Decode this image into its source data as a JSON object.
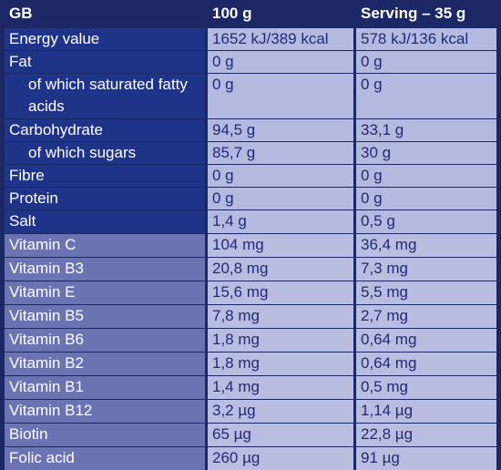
{
  "header": [
    "GB",
    "100 g",
    "Serving – 35 g"
  ],
  "nutrients": [
    [
      "Energy value",
      "1652 kJ/389 kcal",
      "578 kJ/136 kcal"
    ],
    [
      "Fat",
      "0 g",
      "0 g"
    ],
    [
      "of which saturated fatty acids",
      "0 g",
      "0 g"
    ],
    [
      "Carbohydrate",
      "94,5 g",
      "33,1 g"
    ],
    [
      "of which sugars",
      "85,7 g",
      "30 g"
    ],
    [
      "Fibre",
      "0 g",
      "0 g"
    ],
    [
      "Protein",
      "0 g",
      "0 g"
    ],
    [
      "Salt",
      "1,4 g",
      "0,5 g"
    ]
  ],
  "vitamins": [
    [
      "Vitamin C",
      "104 mg",
      "36,4 mg"
    ],
    [
      "Vitamin B3",
      "20,8 mg",
      "7,3 mg"
    ],
    [
      "Vitamin E",
      "15,6 mg",
      "5,5 mg"
    ],
    [
      "Vitamin B5",
      "7,8 mg",
      "2,7 mg"
    ],
    [
      "Vitamin B6",
      "1,8 mg",
      "0,64 mg"
    ],
    [
      "Vitamin B2",
      "1,8 mg",
      "0,64 mg"
    ],
    [
      "Vitamin B1",
      "1,4 mg",
      "0,5 mg"
    ],
    [
      "Vitamin B12",
      "3,2 µg",
      "1,14 µg"
    ],
    [
      "Biotin",
      "65 µg",
      "22,8 µg"
    ],
    [
      "Folic acid",
      "260 µg",
      "91 µg"
    ]
  ]
}
